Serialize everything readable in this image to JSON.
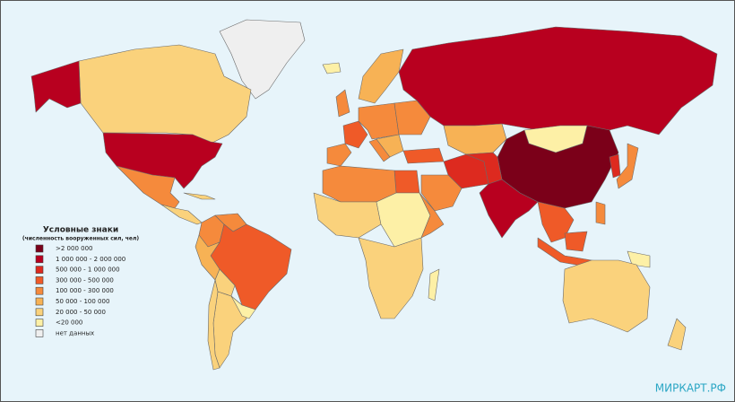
{
  "legend": {
    "title": "Условные знаки",
    "subtitle": "(численность вооруженных сил, чел)",
    "items": [
      {
        "label": ">2 000 000",
        "color": "#7b0019"
      },
      {
        "label": "1 000 000 - 2 000 000",
        "color": "#b8001f"
      },
      {
        "label": "500 000 - 1 000 000",
        "color": "#dd2a1f"
      },
      {
        "label": "300 000 - 500 000",
        "color": "#ef5a28"
      },
      {
        "label": "100 000 - 300 000",
        "color": "#f58a3c"
      },
      {
        "label": "50 000 - 100 000",
        "color": "#f7b255"
      },
      {
        "label": "20 000 - 50 000",
        "color": "#fad27c"
      },
      {
        "label": "<20 000",
        "color": "#fdf0a6"
      },
      {
        "label": "нет данных",
        "color": "#efefef"
      }
    ]
  },
  "watermark": "МИРКАРТ.РФ"
}
